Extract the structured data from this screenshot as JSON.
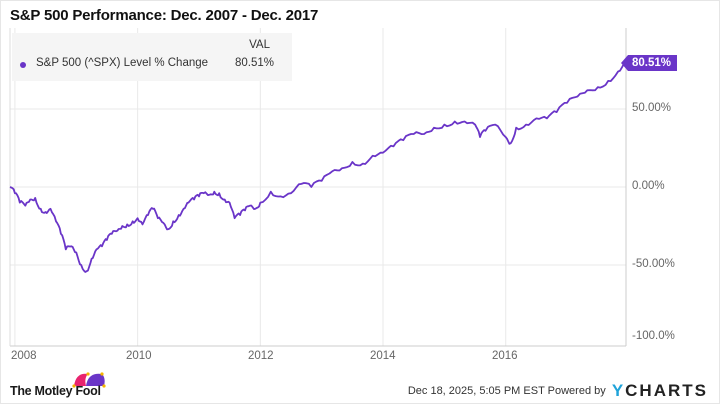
{
  "title": "S&P 500 Performance: Dec. 2007 - Dec. 2017",
  "legend": {
    "header": "VAL",
    "series_name": "S&P 500 (^SPX) Level % Change",
    "series_value": "80.51%",
    "marker_icon": "circle-dot-icon"
  },
  "end_label": "80.51%",
  "y_ticks": [
    "50.00%",
    "0.00%",
    "-50.00%",
    "-100.0%"
  ],
  "x_ticks": [
    "2008",
    "2010",
    "2012",
    "2014",
    "2016"
  ],
  "footer": {
    "brand": "The Motley Fool",
    "brand_icon": "jester-hat-icon",
    "timestamp": "Dec 18, 2025, 5:05 PM EST",
    "powered_by": "Powered by",
    "provider_y": "Y",
    "provider_rest": "CHARTS"
  },
  "colors": {
    "series": "#6a35c8",
    "grid": "#e9e9e9",
    "axis": "#cccccc",
    "legend_bg": "#f5f5f5",
    "ycharts_blue": "#1fa3d9"
  },
  "chart_data": {
    "type": "line",
    "title": "S&P 500 Performance: Dec. 2007 - Dec. 2017",
    "xlabel": "",
    "ylabel": "S&P 500 (^SPX) Level % Change",
    "ylim": [
      -100,
      100
    ],
    "xlim": [
      "2007-12",
      "2017-12"
    ],
    "grid": true,
    "legend_position": "top-left",
    "y_tick_labels": [
      "50.00%",
      "0.00%",
      "-50.00%",
      "-100.0%"
    ],
    "x_tick_labels": [
      "2008",
      "2010",
      "2012",
      "2014",
      "2016"
    ],
    "series": [
      {
        "name": "S&P 500 (^SPX) Level % Change",
        "final_value": 80.51,
        "x": [
          2007.92,
          2008.0,
          2008.08,
          2008.17,
          2008.25,
          2008.33,
          2008.42,
          2008.5,
          2008.58,
          2008.67,
          2008.75,
          2008.83,
          2008.92,
          2009.0,
          2009.08,
          2009.17,
          2009.25,
          2009.33,
          2009.42,
          2009.5,
          2009.58,
          2009.67,
          2009.75,
          2009.83,
          2009.92,
          2010.0,
          2010.08,
          2010.17,
          2010.25,
          2010.33,
          2010.42,
          2010.5,
          2010.58,
          2010.67,
          2010.75,
          2010.83,
          2010.92,
          2011.0,
          2011.08,
          2011.17,
          2011.25,
          2011.33,
          2011.42,
          2011.5,
          2011.58,
          2011.67,
          2011.75,
          2011.83,
          2011.92,
          2012.0,
          2012.17,
          2012.33,
          2012.5,
          2012.67,
          2012.83,
          2013.0,
          2013.17,
          2013.33,
          2013.5,
          2013.67,
          2013.83,
          2014.0,
          2014.17,
          2014.33,
          2014.5,
          2014.67,
          2014.83,
          2015.0,
          2015.17,
          2015.33,
          2015.5,
          2015.58,
          2015.67,
          2015.83,
          2016.0,
          2016.08,
          2016.17,
          2016.33,
          2016.5,
          2016.67,
          2016.83,
          2017.0,
          2017.17,
          2017.33,
          2017.5,
          2017.67,
          2017.83,
          2017.96
        ],
        "values": [
          0,
          -4,
          -10,
          -12,
          -8,
          -7,
          -14,
          -16,
          -14,
          -22,
          -30,
          -40,
          -38,
          -42,
          -50,
          -54,
          -46,
          -40,
          -38,
          -34,
          -30,
          -28,
          -25,
          -24,
          -22,
          -20,
          -24,
          -18,
          -14,
          -20,
          -23,
          -27,
          -22,
          -18,
          -14,
          -10,
          -8,
          -6,
          -4,
          -5,
          -3,
          -4,
          -8,
          -10,
          -20,
          -18,
          -15,
          -12,
          -14,
          -10,
          -3,
          -6,
          -4,
          2,
          0,
          4,
          10,
          12,
          16,
          15,
          20,
          22,
          26,
          30,
          34,
          34,
          38,
          40,
          42,
          42,
          40,
          32,
          36,
          40,
          32,
          28,
          38,
          40,
          44,
          44,
          48,
          54,
          58,
          62,
          64,
          68,
          74,
          80.51
        ]
      }
    ]
  }
}
